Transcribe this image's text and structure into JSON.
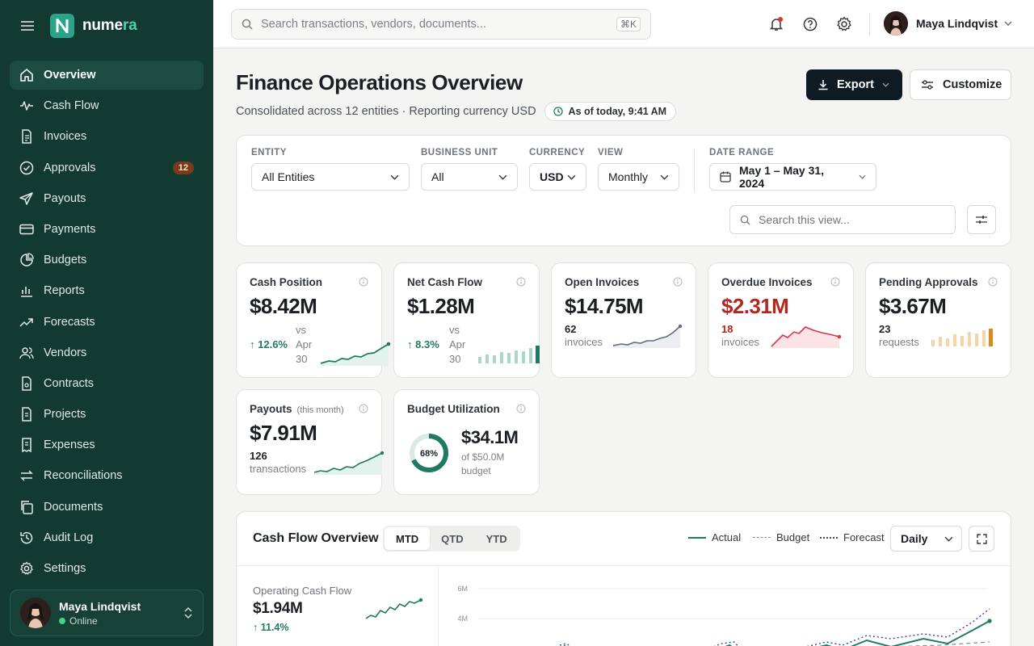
{
  "brand": {
    "name_a": "nume",
    "name_b": "ra",
    "accent": "#2aa38b"
  },
  "sidebar": {
    "items": [
      {
        "label": "Overview",
        "icon": "home-icon",
        "active": true
      },
      {
        "label": "Cash Flow",
        "icon": "pulse-icon"
      },
      {
        "label": "Invoices",
        "icon": "invoice-icon"
      },
      {
        "label": "Approvals",
        "icon": "check-circle-icon",
        "badge": "12"
      },
      {
        "label": "Payouts",
        "icon": "send-icon"
      },
      {
        "label": "Payments",
        "icon": "credit-card-icon"
      },
      {
        "label": "Budgets",
        "icon": "pie-icon"
      },
      {
        "label": "Reports",
        "icon": "bar-chart-icon"
      },
      {
        "label": "Forecasts",
        "icon": "trend-icon"
      },
      {
        "label": "Vendors",
        "icon": "users-icon"
      },
      {
        "label": "Contracts",
        "icon": "file-icon"
      },
      {
        "label": "Projects",
        "icon": "folder-icon"
      },
      {
        "label": "Expenses",
        "icon": "receipt-icon"
      },
      {
        "label": "Reconciliations",
        "icon": "swap-icon"
      },
      {
        "label": "Documents",
        "icon": "copy-icon"
      },
      {
        "label": "Audit Log",
        "icon": "history-icon"
      },
      {
        "label": "Settings",
        "icon": "gear-icon"
      }
    ],
    "user": {
      "name": "Maya Lindqvist",
      "status": "Online"
    }
  },
  "topbar": {
    "search_placeholder": "Search transactions, vendors, documents...",
    "shortcut": "⌘K",
    "user_name": "Maya Lindqvist"
  },
  "header": {
    "title": "Finance Operations Overview",
    "subtitle": "Consolidated across 12 entities · Reporting currency USD",
    "as_of": "As of today, 9:41 AM",
    "export_label": "Export",
    "customize_label": "Customize"
  },
  "filters": {
    "entity": {
      "label": "ENTITY",
      "value": "All Entities"
    },
    "business_unit": {
      "label": "BUSINESS UNIT",
      "value": "All"
    },
    "currency": {
      "label": "CURRENCY",
      "value": "USD"
    },
    "view": {
      "label": "VIEW",
      "value": "Monthly"
    },
    "date_range": {
      "label": "DATE RANGE",
      "value": "May 1 – May 31, 2024"
    },
    "search_placeholder": "Search this view..."
  },
  "kpis": {
    "cash_position": {
      "title": "Cash Position",
      "value": "$8.42M",
      "delta": "12.6%",
      "compare": "vs Apr 30"
    },
    "net_cash_flow": {
      "title": "Net Cash Flow",
      "value": "$1.28M",
      "delta": "8.3%",
      "compare": "vs Apr 30"
    },
    "open_invoices": {
      "title": "Open Invoices",
      "value": "$14.75M",
      "count": "62",
      "unit": "invoices"
    },
    "overdue_invoices": {
      "title": "Overdue Invoices",
      "value": "$2.31M",
      "count": "18",
      "unit": "invoices"
    },
    "pending_approvals": {
      "title": "Pending Approvals",
      "value": "$3.67M",
      "count": "23",
      "unit": "requests"
    },
    "payouts": {
      "title": "Payouts",
      "qualifier": "(this month)",
      "value": "$7.91M",
      "count": "126",
      "unit": "transactions"
    },
    "budget_utilization": {
      "title": "Budget Utilization",
      "percent_label": "68%",
      "percent": 68,
      "value": "$34.1M",
      "of_label": "of $50.0M",
      "unit": "budget"
    }
  },
  "cash_flow": {
    "title": "Cash Flow Overview",
    "tabs": [
      "MTD",
      "QTD",
      "YTD"
    ],
    "active_tab": "MTD",
    "legend": {
      "actual": "Actual",
      "budget": "Budget",
      "forecast": "Forecast"
    },
    "granularity": "Daily",
    "operating": {
      "title": "Operating Cash Flow",
      "value": "$1.94M",
      "delta": "11.4%"
    },
    "y_ticks": [
      "6M",
      "4M"
    ],
    "colors": {
      "actual": "#1f7a62",
      "budget": "#8a9096",
      "forecast": "#3b3fa8"
    }
  }
}
